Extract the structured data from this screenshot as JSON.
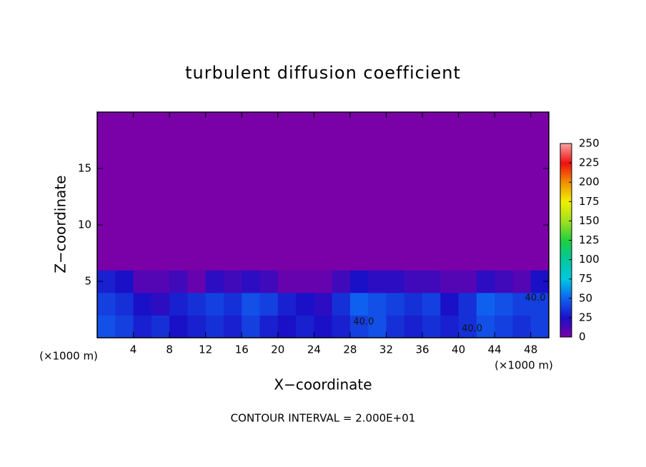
{
  "chart_data": {
    "type": "heatmap",
    "title": "turbulent diffusion coefficient",
    "x_label": "X−coordinate",
    "y_label": "Z−coordinate",
    "x_unit": "(×1000 m)",
    "y_unit": "(×1000 m)",
    "footnote": "CONTOUR INTERVAL = 2.000E+01",
    "xlim": [
      0,
      50
    ],
    "ylim": [
      0,
      20
    ],
    "xticks": [
      4,
      8,
      12,
      16,
      20,
      24,
      28,
      32,
      36,
      40,
      44,
      48
    ],
    "yticks": [
      5,
      10,
      15
    ],
    "x_edges": [
      0,
      2,
      4,
      6,
      8,
      10,
      12,
      14,
      16,
      18,
      20,
      22,
      24,
      26,
      28,
      30,
      32,
      34,
      36,
      38,
      40,
      42,
      44,
      46,
      48,
      50
    ],
    "z_edges": [
      0,
      2,
      4,
      6,
      20
    ],
    "field": [
      [
        45,
        40,
        30,
        35,
        25,
        30,
        35,
        30,
        40,
        30,
        25,
        30,
        25,
        30,
        40,
        45,
        35,
        30,
        35,
        30,
        35,
        45,
        40,
        35,
        40
      ],
      [
        40,
        35,
        25,
        20,
        30,
        35,
        40,
        35,
        45,
        40,
        30,
        25,
        20,
        35,
        50,
        45,
        40,
        35,
        40,
        25,
        35,
        50,
        45,
        40,
        40
      ],
      [
        30,
        25,
        10,
        10,
        15,
        5,
        20,
        15,
        20,
        15,
        5,
        5,
        5,
        15,
        25,
        20,
        20,
        15,
        15,
        10,
        10,
        20,
        15,
        10,
        25
      ],
      [
        0,
        0,
        0,
        0,
        0,
        0,
        0,
        0,
        0,
        0,
        0,
        0,
        0,
        0,
        0,
        0,
        0,
        0,
        0,
        0,
        0,
        0,
        0,
        0,
        0
      ]
    ],
    "contour_labels": [
      {
        "text": "40.0",
        "x": 29.5,
        "z": 1.4
      },
      {
        "text": "40.0",
        "x": 41.5,
        "z": 0.8
      },
      {
        "text": "40.0",
        "x": 48.5,
        "z": 3.5
      }
    ],
    "colorbar": {
      "lim": [
        0,
        250
      ],
      "ticks": [
        0,
        25,
        50,
        75,
        100,
        125,
        150,
        175,
        200,
        225,
        250
      ],
      "colors": [
        "#7a00a8",
        "#1a10c8",
        "#1060f0",
        "#00c8e0",
        "#00c8a0",
        "#20d040",
        "#a0e020",
        "#f0f000",
        "#f09000",
        "#f01010",
        "#f8a0a0"
      ]
    }
  }
}
